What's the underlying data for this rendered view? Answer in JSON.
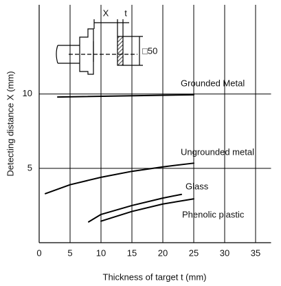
{
  "chart_data": {
    "type": "line",
    "x_label": "Thickness of target t (mm)",
    "y_label": "Detecting distance X (mm)",
    "xlim": [
      0,
      37.5
    ],
    "ylim": [
      0,
      16
    ],
    "xticks": [
      0,
      5,
      10,
      15,
      20,
      25,
      30,
      35
    ],
    "yticks": [
      5,
      10
    ],
    "grid": true,
    "diagram_labels": {
      "x": "X",
      "t": "t",
      "size": "□50"
    },
    "series": [
      {
        "name": "Grounded Metal",
        "color": "#000000",
        "x": [
          3,
          25
        ],
        "values": [
          9.8,
          9.95
        ]
      },
      {
        "name": "Ungrounded metal",
        "color": "#000000",
        "x": [
          1,
          5,
          10,
          15,
          20,
          25
        ],
        "values": [
          3.3,
          3.9,
          4.4,
          4.8,
          5.1,
          5.35
        ]
      },
      {
        "name": "Glass",
        "color": "#000000",
        "x": [
          8,
          10,
          15,
          20,
          23
        ],
        "values": [
          1.4,
          1.9,
          2.5,
          3.0,
          3.25
        ]
      },
      {
        "name": "Phenolic plastic",
        "color": "#000000",
        "x": [
          10,
          15,
          20,
          25
        ],
        "values": [
          1.45,
          2.1,
          2.6,
          2.95
        ]
      }
    ]
  }
}
